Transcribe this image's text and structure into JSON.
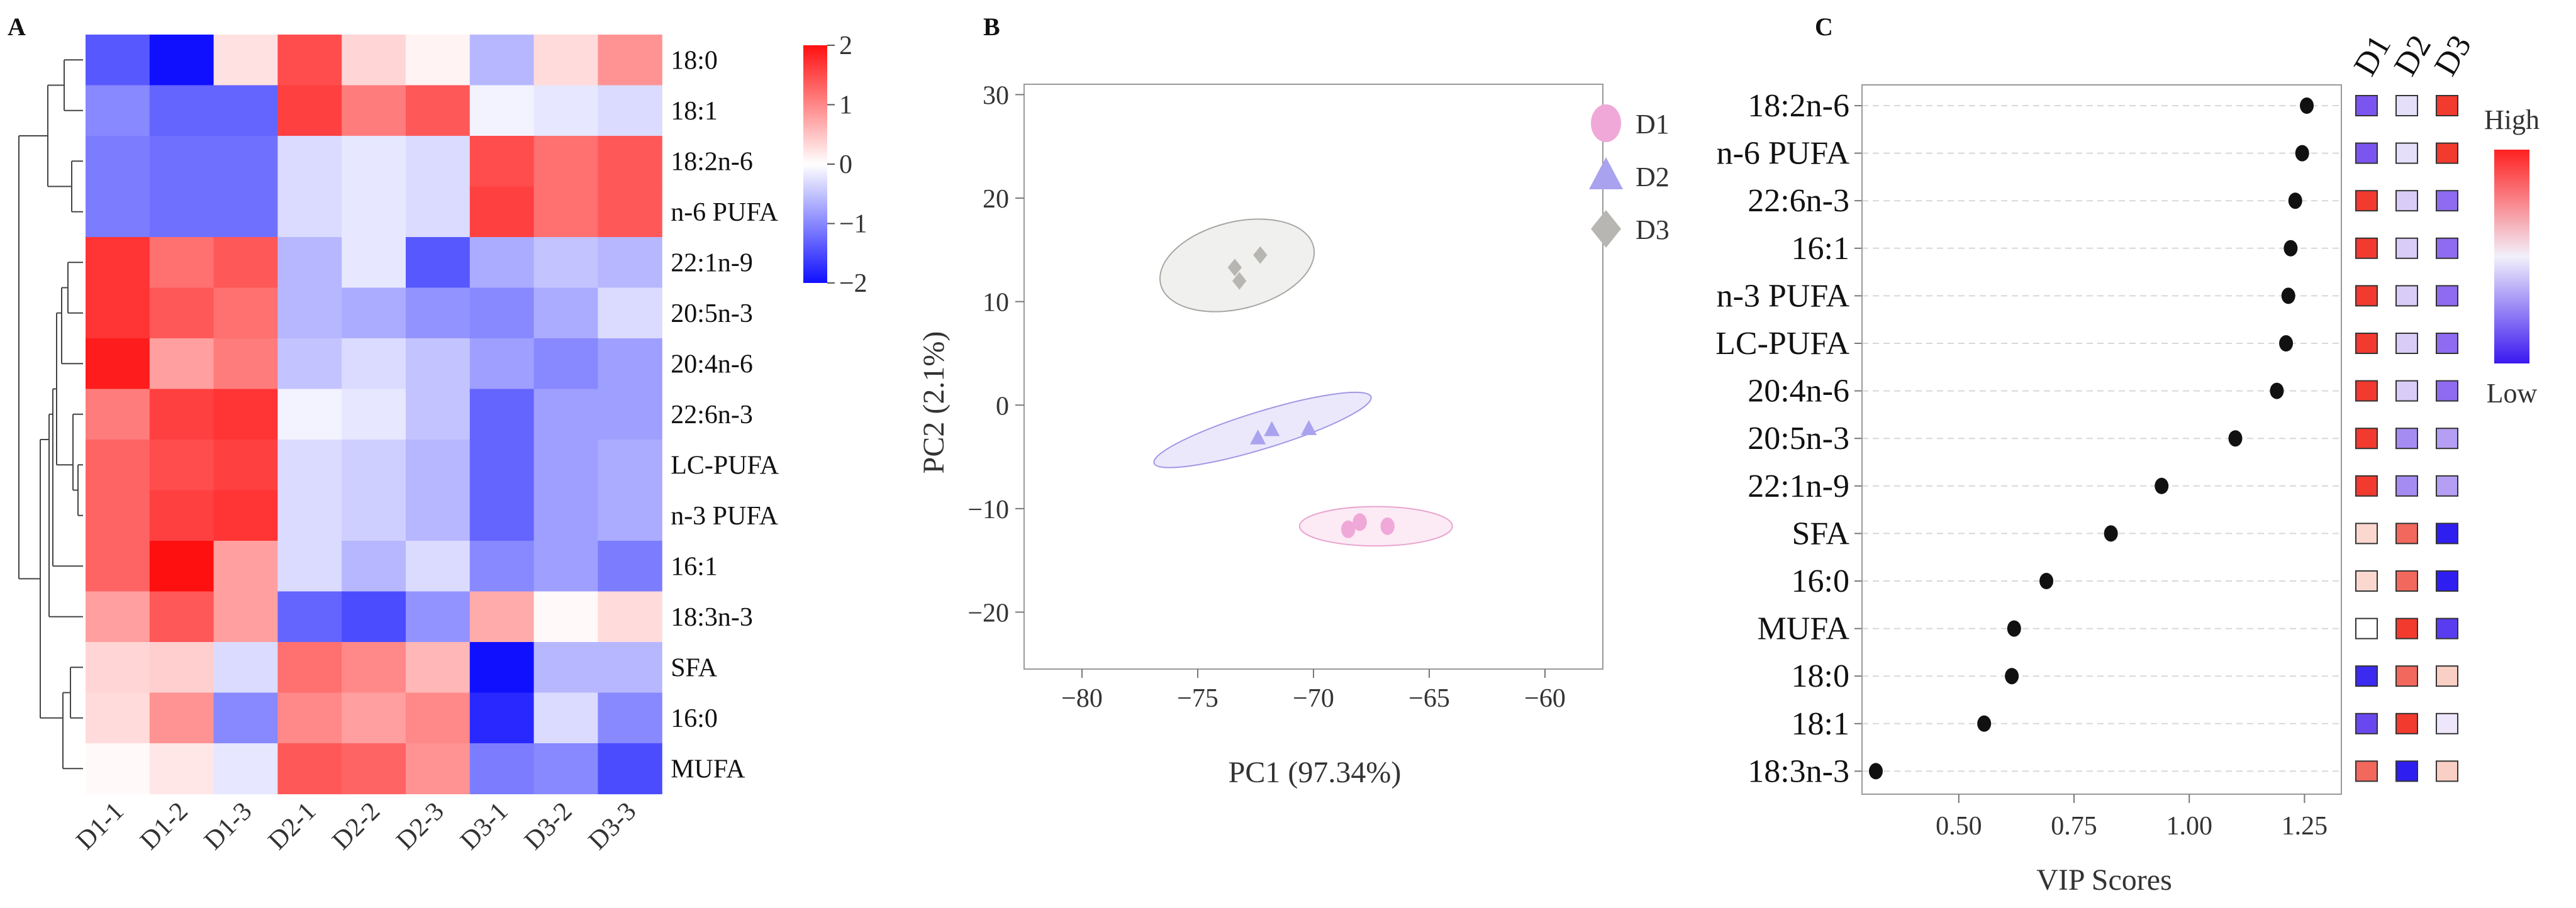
{
  "figure": {
    "panels": [
      "A",
      "B",
      "C"
    ]
  },
  "chart_data": [
    {
      "panel": "A",
      "type": "heatmap",
      "title": "",
      "rows": [
        "18:0",
        "18:1",
        "18:2n-6",
        "n-6 PUFA",
        "22:1n-9",
        "20:5n-3",
        "20:4n-6",
        "22:6n-3",
        "LC-PUFA",
        "n-3 PUFA",
        "16:1",
        "18:3n-3",
        "SFA",
        "16:0",
        "MUFA"
      ],
      "columns": [
        "D1-1",
        "D1-2",
        "D1-3",
        "D2-1",
        "D2-2",
        "D2-3",
        "D3-1",
        "D3-2",
        "D3-3"
      ],
      "values": [
        [
          -1.4,
          -2.0,
          0.25,
          1.5,
          0.35,
          0.1,
          -0.6,
          0.3,
          0.9
        ],
        [
          -1.0,
          -1.3,
          -1.3,
          1.6,
          1.1,
          1.4,
          -0.1,
          -0.2,
          -0.3
        ],
        [
          -1.1,
          -1.2,
          -1.2,
          -0.3,
          -0.2,
          -0.3,
          1.5,
          1.2,
          1.4
        ],
        [
          -1.1,
          -1.2,
          -1.2,
          -0.3,
          -0.2,
          -0.3,
          1.6,
          1.2,
          1.4
        ],
        [
          1.7,
          1.2,
          1.4,
          -0.6,
          -0.2,
          -1.4,
          -0.7,
          -0.5,
          -0.6
        ],
        [
          1.7,
          1.4,
          1.2,
          -0.6,
          -0.7,
          -0.9,
          -1.0,
          -0.7,
          -0.3
        ],
        [
          1.9,
          0.8,
          1.1,
          -0.5,
          -0.3,
          -0.5,
          -0.8,
          -1.0,
          -0.8
        ],
        [
          1.1,
          1.6,
          1.7,
          -0.1,
          -0.2,
          -0.5,
          -1.3,
          -0.8,
          -0.8
        ],
        [
          1.3,
          1.5,
          1.6,
          -0.3,
          -0.4,
          -0.6,
          -1.3,
          -0.8,
          -0.7
        ],
        [
          1.3,
          1.6,
          1.7,
          -0.3,
          -0.4,
          -0.6,
          -1.3,
          -0.8,
          -0.7
        ],
        [
          1.3,
          2.0,
          0.8,
          -0.3,
          -0.6,
          -0.3,
          -1.0,
          -0.8,
          -1.1
        ],
        [
          0.8,
          1.4,
          0.8,
          -1.3,
          -1.5,
          -0.9,
          0.7,
          0.05,
          0.3
        ],
        [
          0.35,
          0.4,
          -0.3,
          1.2,
          1.0,
          0.6,
          -2.0,
          -0.6,
          -0.6
        ],
        [
          0.3,
          0.9,
          -1.0,
          1.0,
          0.8,
          1.0,
          -1.8,
          -0.3,
          -1.0
        ],
        [
          0.05,
          0.2,
          -0.2,
          1.4,
          1.3,
          0.9,
          -1.1,
          -1.0,
          -1.5
        ]
      ],
      "colorbar": {
        "min": -2,
        "max": 2,
        "ticks": [
          "2",
          "1",
          "0",
          "−1",
          "−2"
        ],
        "low_color": "#1010ff",
        "mid_color": "#ffffff",
        "high_color": "#ff1010"
      }
    },
    {
      "panel": "B",
      "type": "scatter",
      "title": "",
      "xlabel": "PC1 (97.34%)",
      "ylabel": "PC2 (2.1%)",
      "xlim": [
        -82.5,
        -57.5
      ],
      "ylim": [
        -25.5,
        31
      ],
      "xticks": [
        -80,
        -75,
        -70,
        -65,
        -60
      ],
      "yticks": [
        30,
        20,
        10,
        0,
        -10,
        -20
      ],
      "xtick_labels": [
        "−80",
        "−75",
        "−70",
        "−65",
        "−60"
      ],
      "ytick_labels": [
        "30",
        "20",
        "10",
        "0",
        "−10",
        "−20"
      ],
      "series": [
        {
          "name": "D1",
          "marker": "circle",
          "color": "#f0a8d8",
          "fill": "#fbe6f3",
          "stroke": "#e8a5cf",
          "points": [
            [
              -68.5,
              -12.0
            ],
            [
              -68.0,
              -11.3
            ],
            [
              -66.8,
              -11.7
            ]
          ],
          "ellipse": {
            "cx": -67.3,
            "cy": -11.7,
            "rx": 3.3,
            "ry": 1.9,
            "angle_deg": 0
          }
        },
        {
          "name": "D2",
          "marker": "triangle",
          "color": "#a9a2ee",
          "fill": "#e7e4fb",
          "stroke": "#9f97e6",
          "points": [
            [
              -72.4,
              -3.2
            ],
            [
              -71.8,
              -2.4
            ],
            [
              -70.2,
              -2.3
            ]
          ],
          "ellipse": {
            "cx": -72.2,
            "cy": -2.4,
            "rx": 4.9,
            "ry": 1.8,
            "angle_deg": 17
          }
        },
        {
          "name": "D3",
          "marker": "diamond",
          "color": "#b8b6b2",
          "fill": "#ededec",
          "stroke": "#a9a7a3",
          "points": [
            [
              -73.4,
              13.3
            ],
            [
              -73.2,
              12.0
            ],
            [
              -72.3,
              14.5
            ]
          ],
          "ellipse": {
            "cx": -73.3,
            "cy": 13.5,
            "rx": 3.4,
            "ry": 4.2,
            "angle_deg": 14
          }
        }
      ],
      "legend": [
        "D1",
        "D2",
        "D3"
      ]
    },
    {
      "panel": "C",
      "type": "scatter",
      "title": "",
      "xlabel": "VIP Scores",
      "xlim": [
        0.29,
        1.33
      ],
      "xticks": [
        0.5,
        0.75,
        1.0,
        1.25
      ],
      "xtick_labels": [
        "0.50",
        "0.75",
        "1.00",
        "1.25"
      ],
      "categories": [
        "18:2n-6",
        "n-6 PUFA",
        "22:6n-3",
        "16:1",
        "n-3 PUFA",
        "LC-PUFA",
        "20:4n-6",
        "20:5n-3",
        "22:1n-9",
        "SFA",
        "16:0",
        "MUFA",
        "18:0",
        "18:1",
        "18:3n-3"
      ],
      "values": [
        1.255,
        1.245,
        1.23,
        1.22,
        1.215,
        1.21,
        1.19,
        1.1,
        0.94,
        0.83,
        0.69,
        0.62,
        0.615,
        0.555,
        0.32
      ],
      "group_columns": [
        "D1",
        "D2",
        "D3"
      ],
      "group_colors": [
        [
          "#7b55ef",
          "#e6dff9",
          "#f23a2e"
        ],
        [
          "#7b55ef",
          "#e6dff9",
          "#f23a2e"
        ],
        [
          "#f23a2e",
          "#d9ccf7",
          "#8e6bf0"
        ],
        [
          "#f23a2e",
          "#d9ccf7",
          "#8e6bf0"
        ],
        [
          "#f23a2e",
          "#d9ccf7",
          "#8e6bf0"
        ],
        [
          "#f23a2e",
          "#d9ccf7",
          "#8e6bf0"
        ],
        [
          "#f23a2e",
          "#d9ccf7",
          "#8e6bf0"
        ],
        [
          "#f23a2e",
          "#a58cf3",
          "#b59ff4"
        ],
        [
          "#f23a2e",
          "#a58cf3",
          "#b59ff4"
        ],
        [
          "#fbd8cf",
          "#f2685c",
          "#2f1ef0"
        ],
        [
          "#fbd8cf",
          "#f2685c",
          "#2f1ef0"
        ],
        [
          "#ffffff",
          "#f23a2e",
          "#5a3cf0"
        ],
        [
          "#3b2af0",
          "#f2685c",
          "#fbd0c4"
        ],
        [
          "#6a48ef",
          "#f23a2e",
          "#eee7fb"
        ],
        [
          "#f2685c",
          "#2f1ef0",
          "#fbd0c4"
        ]
      ],
      "legend": {
        "high": "High",
        "low": "Low",
        "high_color": "#ff2020",
        "mid_color": "#f2f0fb",
        "low_color": "#3a18f0"
      }
    }
  ]
}
